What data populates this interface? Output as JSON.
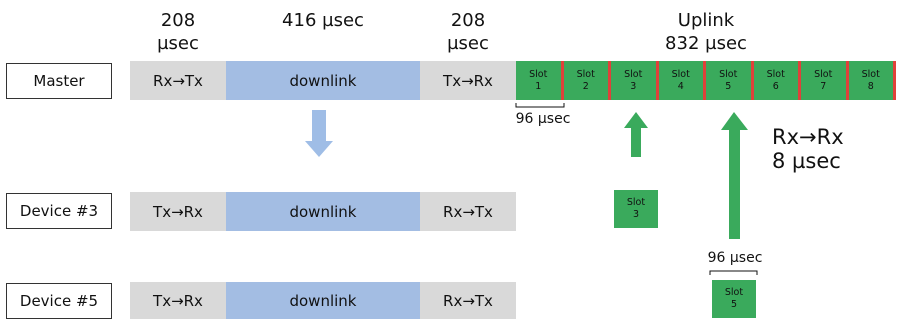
{
  "headers": {
    "transition1": [
      "208",
      "µsec"
    ],
    "downlink": "416 µsec",
    "transition2": [
      "208",
      "µsec"
    ],
    "uplink": [
      "Uplink",
      "832 µsec"
    ]
  },
  "rows": [
    {
      "label": "Master",
      "seg1": "Rx→Tx",
      "seg2": "downlink",
      "seg3": "Tx→Rx"
    },
    {
      "label": "Device #3",
      "seg1": "Tx→Rx",
      "seg2": "downlink",
      "seg3": "Rx→Tx"
    },
    {
      "label": "Device #5",
      "seg1": "Tx→Rx",
      "seg2": "downlink",
      "seg3": "Rx→Tx"
    }
  ],
  "slot_word": "Slot",
  "slots": [
    "1",
    "2",
    "3",
    "4",
    "5",
    "6",
    "7",
    "8"
  ],
  "device_slots": {
    "device3": {
      "word": "Slot",
      "num": "3"
    },
    "device5": {
      "word": "Slot",
      "num": "5"
    }
  },
  "annotations": {
    "slot_width_master": "96 µsec",
    "slot_width_device5": "96 µsec",
    "rxrx": [
      "Rx→Rx",
      "8 µsec"
    ]
  },
  "colors": {
    "gray": "#d9d9d9",
    "blue": "#a3bde3",
    "green": "#3aaa5c",
    "separator": "#e0413a",
    "arrow_blue": "#9fbde6",
    "arrow_green": "#3aaa5c"
  }
}
